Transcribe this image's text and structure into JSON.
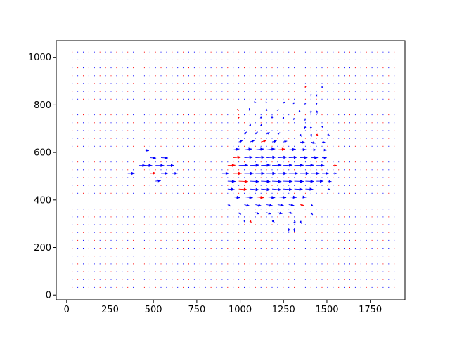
{
  "chart_data": {
    "type": "quiver",
    "title": "",
    "xlabel": "",
    "ylabel": "",
    "xlim": [
      -60,
      1950
    ],
    "ylim": [
      -20,
      1070
    ],
    "grid": false,
    "x_ticks": [
      0,
      250,
      500,
      750,
      1000,
      1250,
      1500,
      1750
    ],
    "y_ticks": [
      0,
      200,
      400,
      600,
      800,
      1000
    ],
    "x_tick_labels": [
      "0",
      "250",
      "500",
      "750",
      "1000",
      "1250",
      "1500",
      "1750"
    ],
    "y_tick_labels": [
      "0",
      "200",
      "400",
      "600",
      "800",
      "1000"
    ],
    "grid_field": {
      "x_start": 32,
      "x_step": 32,
      "x_count": 59,
      "y_start": 32,
      "y_step": 33,
      "y_count": 31
    },
    "series": [
      {
        "color": "#0000ff"
      },
      {
        "color": "#ff0000"
      }
    ],
    "vectors": [
      {
        "x": 352,
        "y": 512,
        "u": 45,
        "v": 0
      },
      {
        "x": 416,
        "y": 545,
        "u": 45,
        "v": 0
      },
      {
        "x": 448,
        "y": 545,
        "u": 50,
        "v": 0
      },
      {
        "x": 480,
        "y": 578,
        "u": 40,
        "v": -3
      },
      {
        "x": 480,
        "y": 512,
        "u": 40,
        "v": 2
      },
      {
        "x": 512,
        "y": 545,
        "u": 55,
        "v": 0
      },
      {
        "x": 544,
        "y": 578,
        "u": 45,
        "v": -2
      },
      {
        "x": 544,
        "y": 512,
        "u": 45,
        "v": 0
      },
      {
        "x": 576,
        "y": 545,
        "u": 50,
        "v": 0
      },
      {
        "x": 608,
        "y": 512,
        "u": 35,
        "v": 0
      },
      {
        "x": 448,
        "y": 611,
        "u": 30,
        "v": -6
      },
      {
        "x": 512,
        "y": 479,
        "u": 35,
        "v": 4
      },
      {
        "x": 896,
        "y": 512,
        "u": 45,
        "v": 0
      },
      {
        "x": 960,
        "y": 512,
        "u": 55,
        "v": 0
      },
      {
        "x": 1024,
        "y": 512,
        "u": 60,
        "v": 0
      },
      {
        "x": 1088,
        "y": 512,
        "u": 60,
        "v": 0
      },
      {
        "x": 1152,
        "y": 512,
        "u": 60,
        "v": 0
      },
      {
        "x": 1216,
        "y": 512,
        "u": 60,
        "v": 0
      },
      {
        "x": 1280,
        "y": 512,
        "u": 60,
        "v": 0
      },
      {
        "x": 1344,
        "y": 512,
        "u": 60,
        "v": 0
      },
      {
        "x": 1408,
        "y": 512,
        "u": 55,
        "v": 0
      },
      {
        "x": 1472,
        "y": 512,
        "u": 45,
        "v": 0
      },
      {
        "x": 928,
        "y": 545,
        "u": 50,
        "v": 2
      },
      {
        "x": 992,
        "y": 545,
        "u": 60,
        "v": 2
      },
      {
        "x": 1056,
        "y": 545,
        "u": 60,
        "v": 3
      },
      {
        "x": 1120,
        "y": 545,
        "u": 60,
        "v": 3
      },
      {
        "x": 1184,
        "y": 545,
        "u": 60,
        "v": 3
      },
      {
        "x": 1248,
        "y": 545,
        "u": 60,
        "v": 3
      },
      {
        "x": 1312,
        "y": 545,
        "u": 60,
        "v": 2
      },
      {
        "x": 1376,
        "y": 545,
        "u": 55,
        "v": 2
      },
      {
        "x": 1440,
        "y": 545,
        "u": 50,
        "v": 0
      },
      {
        "x": 960,
        "y": 578,
        "u": 50,
        "v": 4
      },
      {
        "x": 1024,
        "y": 578,
        "u": 55,
        "v": 4
      },
      {
        "x": 1088,
        "y": 578,
        "u": 60,
        "v": 4
      },
      {
        "x": 1152,
        "y": 578,
        "u": 60,
        "v": 4
      },
      {
        "x": 1216,
        "y": 578,
        "u": 60,
        "v": 4
      },
      {
        "x": 1280,
        "y": 578,
        "u": 55,
        "v": 3
      },
      {
        "x": 1344,
        "y": 578,
        "u": 50,
        "v": 2
      },
      {
        "x": 1408,
        "y": 578,
        "u": 45,
        "v": 0
      },
      {
        "x": 928,
        "y": 479,
        "u": 50,
        "v": -2
      },
      {
        "x": 992,
        "y": 479,
        "u": 60,
        "v": -3
      },
      {
        "x": 1056,
        "y": 479,
        "u": 60,
        "v": -3
      },
      {
        "x": 1120,
        "y": 479,
        "u": 60,
        "v": -3
      },
      {
        "x": 1184,
        "y": 479,
        "u": 60,
        "v": -3
      },
      {
        "x": 1248,
        "y": 479,
        "u": 60,
        "v": -2
      },
      {
        "x": 1312,
        "y": 479,
        "u": 60,
        "v": -2
      },
      {
        "x": 1376,
        "y": 479,
        "u": 55,
        "v": -2
      },
      {
        "x": 1440,
        "y": 479,
        "u": 45,
        "v": 0
      },
      {
        "x": 928,
        "y": 446,
        "u": 45,
        "v": -4
      },
      {
        "x": 992,
        "y": 446,
        "u": 55,
        "v": -4
      },
      {
        "x": 1056,
        "y": 446,
        "u": 60,
        "v": -5
      },
      {
        "x": 1120,
        "y": 446,
        "u": 60,
        "v": -5
      },
      {
        "x": 1184,
        "y": 446,
        "u": 60,
        "v": -5
      },
      {
        "x": 1248,
        "y": 446,
        "u": 60,
        "v": -4
      },
      {
        "x": 1312,
        "y": 446,
        "u": 55,
        "v": -3
      },
      {
        "x": 1376,
        "y": 446,
        "u": 50,
        "v": -2
      },
      {
        "x": 960,
        "y": 413,
        "u": 45,
        "v": -6
      },
      {
        "x": 1024,
        "y": 413,
        "u": 55,
        "v": -6
      },
      {
        "x": 1088,
        "y": 413,
        "u": 55,
        "v": -6
      },
      {
        "x": 1152,
        "y": 413,
        "u": 55,
        "v": -6
      },
      {
        "x": 1216,
        "y": 413,
        "u": 55,
        "v": -5
      },
      {
        "x": 1280,
        "y": 413,
        "u": 50,
        "v": -4
      },
      {
        "x": 1344,
        "y": 413,
        "u": 40,
        "v": -3
      },
      {
        "x": 960,
        "y": 611,
        "u": 40,
        "v": 6
      },
      {
        "x": 1024,
        "y": 611,
        "u": 50,
        "v": 6
      },
      {
        "x": 1088,
        "y": 611,
        "u": 55,
        "v": 6
      },
      {
        "x": 1152,
        "y": 611,
        "u": 55,
        "v": 6
      },
      {
        "x": 1216,
        "y": 611,
        "u": 50,
        "v": 5
      },
      {
        "x": 1280,
        "y": 611,
        "u": 45,
        "v": 4
      },
      {
        "x": 1344,
        "y": 611,
        "u": 40,
        "v": 2
      },
      {
        "x": 1408,
        "y": 611,
        "u": 35,
        "v": 0
      },
      {
        "x": 1472,
        "y": 611,
        "u": 30,
        "v": -2
      },
      {
        "x": 1408,
        "y": 644,
        "u": 30,
        "v": -8
      },
      {
        "x": 1472,
        "y": 644,
        "u": 25,
        "v": -6
      },
      {
        "x": 1344,
        "y": 644,
        "u": 35,
        "v": -5
      },
      {
        "x": 1472,
        "y": 578,
        "u": 30,
        "v": 0
      },
      {
        "x": 1536,
        "y": 545,
        "u": 25,
        "v": 0
      },
      {
        "x": 1536,
        "y": 512,
        "u": 25,
        "v": 0
      },
      {
        "x": 1504,
        "y": 479,
        "u": 25,
        "v": -3
      },
      {
        "x": 1504,
        "y": 446,
        "u": 20,
        "v": -5
      },
      {
        "x": 1024,
        "y": 380,
        "u": 35,
        "v": -8
      },
      {
        "x": 1088,
        "y": 380,
        "u": 40,
        "v": -8
      },
      {
        "x": 1152,
        "y": 380,
        "u": 40,
        "v": -7
      },
      {
        "x": 1216,
        "y": 380,
        "u": 40,
        "v": -6
      },
      {
        "x": 1280,
        "y": 380,
        "u": 35,
        "v": -5
      },
      {
        "x": 1344,
        "y": 380,
        "u": 25,
        "v": -4
      },
      {
        "x": 1088,
        "y": 347,
        "u": 25,
        "v": -10
      },
      {
        "x": 1152,
        "y": 347,
        "u": 30,
        "v": -10
      },
      {
        "x": 1216,
        "y": 347,
        "u": 30,
        "v": -8
      },
      {
        "x": 1280,
        "y": 347,
        "u": 25,
        "v": -6
      },
      {
        "x": 1312,
        "y": 314,
        "u": 5,
        "v": -25
      },
      {
        "x": 1344,
        "y": 314,
        "u": 10,
        "v": -20
      },
      {
        "x": 1280,
        "y": 281,
        "u": 0,
        "v": -20
      },
      {
        "x": 1312,
        "y": 281,
        "u": 0,
        "v": -22
      },
      {
        "x": 1056,
        "y": 314,
        "u": 10,
        "v": -15
      },
      {
        "x": 1024,
        "y": 314,
        "u": 5,
        "v": -15
      },
      {
        "x": 992,
        "y": 347,
        "u": 15,
        "v": -12
      },
      {
        "x": 928,
        "y": 380,
        "u": 20,
        "v": -10
      },
      {
        "x": 1184,
        "y": 314,
        "u": 15,
        "v": -12
      },
      {
        "x": 1408,
        "y": 347,
        "u": 12,
        "v": -15
      },
      {
        "x": 1408,
        "y": 380,
        "u": 15,
        "v": -10
      },
      {
        "x": 992,
        "y": 644,
        "u": 25,
        "v": 10
      },
      {
        "x": 1056,
        "y": 644,
        "u": 30,
        "v": 10
      },
      {
        "x": 1120,
        "y": 644,
        "u": 35,
        "v": 10
      },
      {
        "x": 1184,
        "y": 644,
        "u": 30,
        "v": 8
      },
      {
        "x": 1248,
        "y": 644,
        "u": 25,
        "v": 6
      },
      {
        "x": 1024,
        "y": 677,
        "u": 15,
        "v": 15
      },
      {
        "x": 1088,
        "y": 677,
        "u": 15,
        "v": 15
      },
      {
        "x": 1152,
        "y": 677,
        "u": 20,
        "v": 12
      },
      {
        "x": 1216,
        "y": 677,
        "u": 15,
        "v": 10
      },
      {
        "x": 1344,
        "y": 677,
        "u": 10,
        "v": -15
      },
      {
        "x": 1408,
        "y": 677,
        "u": 5,
        "v": -15
      },
      {
        "x": 1440,
        "y": 677,
        "u": 10,
        "v": -12
      },
      {
        "x": 1504,
        "y": 677,
        "u": 12,
        "v": -8
      },
      {
        "x": 1408,
        "y": 710,
        "u": 0,
        "v": -20
      },
      {
        "x": 1376,
        "y": 710,
        "u": -5,
        "v": -18
      },
      {
        "x": 1472,
        "y": 710,
        "u": 8,
        "v": -12
      },
      {
        "x": 1056,
        "y": 710,
        "u": 5,
        "v": 18
      },
      {
        "x": 1120,
        "y": 710,
        "u": 5,
        "v": 18
      },
      {
        "x": 1184,
        "y": 743,
        "u": 0,
        "v": 18
      },
      {
        "x": 1120,
        "y": 743,
        "u": 0,
        "v": 15
      },
      {
        "x": 992,
        "y": 743,
        "u": -5,
        "v": 15
      },
      {
        "x": 1248,
        "y": 743,
        "u": 5,
        "v": 12
      },
      {
        "x": 1312,
        "y": 743,
        "u": -5,
        "v": -10
      },
      {
        "x": 1376,
        "y": 743,
        "u": -3,
        "v": -15
      },
      {
        "x": 1408,
        "y": 776,
        "u": 0,
        "v": -20
      },
      {
        "x": 1440,
        "y": 776,
        "u": 5,
        "v": -18
      },
      {
        "x": 1344,
        "y": 776,
        "u": -8,
        "v": -10
      },
      {
        "x": 1056,
        "y": 776,
        "u": -5,
        "v": 15
      },
      {
        "x": 1152,
        "y": 776,
        "u": 0,
        "v": 12
      },
      {
        "x": 992,
        "y": 776,
        "u": -10,
        "v": 10
      },
      {
        "x": 1216,
        "y": 776,
        "u": 5,
        "v": 10
      },
      {
        "x": 1376,
        "y": 809,
        "u": -3,
        "v": -12
      },
      {
        "x": 1440,
        "y": 809,
        "u": 0,
        "v": -15
      },
      {
        "x": 1312,
        "y": 809,
        "u": -8,
        "v": -8
      },
      {
        "x": 1248,
        "y": 809,
        "u": 10,
        "v": 5
      },
      {
        "x": 1408,
        "y": 842,
        "u": 0,
        "v": -10
      },
      {
        "x": 1440,
        "y": 842,
        "u": 3,
        "v": -10
      },
      {
        "x": 1472,
        "y": 875,
        "u": 3,
        "v": -8
      },
      {
        "x": 1376,
        "y": 875,
        "u": -2,
        "v": -6
      },
      {
        "x": 1152,
        "y": 809,
        "u": -5,
        "v": 8
      },
      {
        "x": 1088,
        "y": 809,
        "u": -8,
        "v": 8
      }
    ]
  }
}
